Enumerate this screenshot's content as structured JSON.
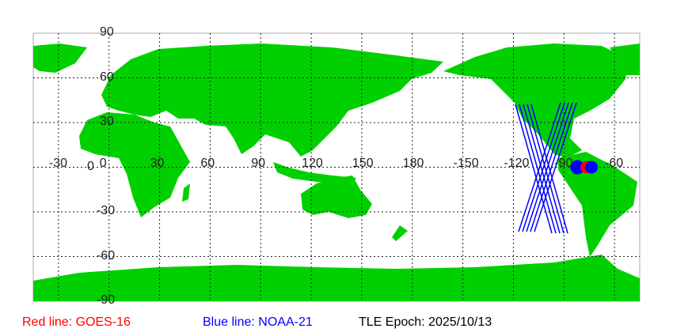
{
  "map": {
    "lon_labels": [
      "-30",
      "0",
      "30",
      "60",
      "90",
      "120",
      "150",
      "180",
      "-150",
      "-120",
      "-90",
      "-60"
    ],
    "lat_labels": [
      "90",
      "60",
      "30",
      "0",
      "-30",
      "-60",
      "-90"
    ],
    "land_color": "#00d000",
    "grid": true,
    "satellites": [
      {
        "name": "GOES-16",
        "color": "#ff0000",
        "lon": -75,
        "lat": 0
      },
      {
        "name": "NOAA-21",
        "color": "#0000ff",
        "lon": -82,
        "lat": 0
      }
    ]
  },
  "legend": {
    "red": "Red line: GOES-16",
    "blue": "Blue line: NOAA-21",
    "epoch": "TLE Epoch: 2025/10/13"
  }
}
